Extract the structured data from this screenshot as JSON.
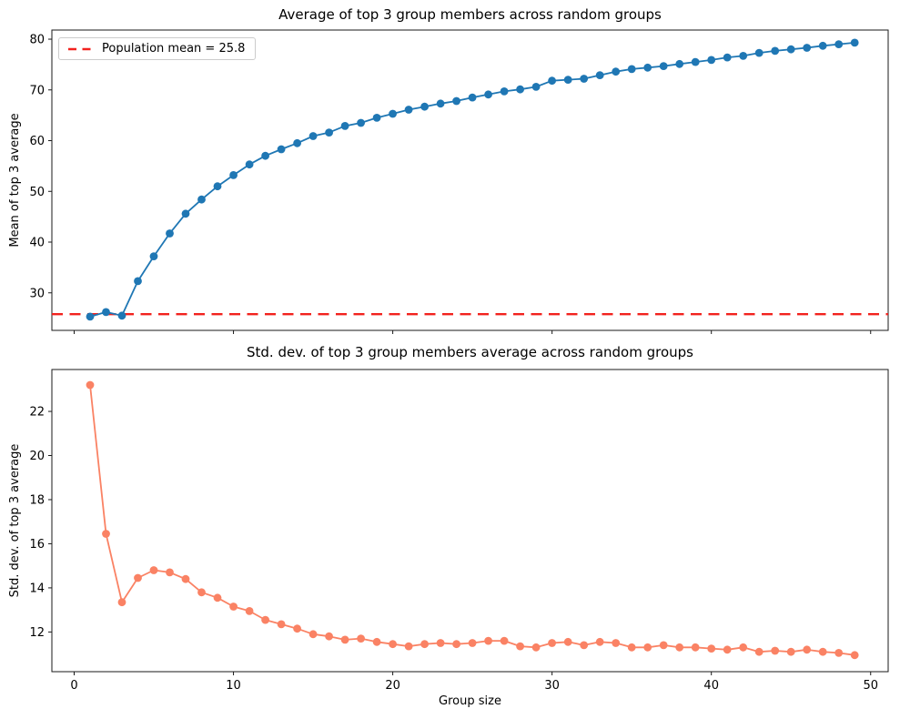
{
  "figure": {
    "background": "#ffffff",
    "text_color": "#000000",
    "spine_color": "#1a1a1a"
  },
  "chart_data": [
    {
      "type": "line",
      "title": "Average of top 3 group members across random groups",
      "xlabel": "",
      "ylabel": "Mean of top 3 average",
      "series_color": "#1f77b4",
      "marker": "circle",
      "x": [
        1,
        2,
        3,
        4,
        5,
        6,
        7,
        8,
        9,
        10,
        11,
        12,
        13,
        14,
        15,
        16,
        17,
        18,
        19,
        20,
        21,
        22,
        23,
        24,
        25,
        26,
        27,
        28,
        29,
        30,
        31,
        32,
        33,
        34,
        35,
        36,
        37,
        38,
        39,
        40,
        41,
        42,
        43,
        44,
        45,
        46,
        47,
        48,
        49
      ],
      "values": [
        25.3,
        26.2,
        25.5,
        32.3,
        37.2,
        41.7,
        45.6,
        48.4,
        51.0,
        53.2,
        55.3,
        57.0,
        58.3,
        59.5,
        60.9,
        61.6,
        62.9,
        63.5,
        64.5,
        65.3,
        66.1,
        66.7,
        67.3,
        67.8,
        68.5,
        69.1,
        69.7,
        70.1,
        70.6,
        71.8,
        72.0,
        72.2,
        72.9,
        73.6,
        74.1,
        74.4,
        74.7,
        75.1,
        75.5,
        75.9,
        76.4,
        76.7,
        77.3,
        77.7,
        78.0,
        78.3,
        78.7,
        79.0,
        79.3
      ],
      "hline": {
        "value": 25.8,
        "color": "#f2221e",
        "style": "dashed",
        "label": "Population mean = 25.8"
      },
      "legend_position": "upper-left",
      "xlim": [
        -1.4,
        51.1
      ],
      "ylim": [
        22.6,
        81.8
      ],
      "xticks": [
        0,
        10,
        20,
        30,
        40,
        50
      ],
      "x_tick_labels_visible": false,
      "yticks": [
        30,
        40,
        50,
        60,
        70,
        80
      ],
      "grid": false
    },
    {
      "type": "line",
      "title": "Std. dev. of top 3 group members average across random groups",
      "xlabel": "Group size",
      "ylabel": "Std. dev. of top 3 average",
      "series_color": "#fa8264",
      "marker": "circle",
      "x": [
        1,
        2,
        3,
        4,
        5,
        6,
        7,
        8,
        9,
        10,
        11,
        12,
        13,
        14,
        15,
        16,
        17,
        18,
        19,
        20,
        21,
        22,
        23,
        24,
        25,
        26,
        27,
        28,
        29,
        30,
        31,
        32,
        33,
        34,
        35,
        36,
        37,
        38,
        39,
        40,
        41,
        42,
        43,
        44,
        45,
        46,
        47,
        48,
        49
      ],
      "values": [
        23.2,
        16.45,
        13.35,
        14.45,
        14.8,
        14.7,
        14.4,
        13.8,
        13.55,
        13.15,
        12.95,
        12.55,
        12.35,
        12.15,
        11.9,
        11.8,
        11.65,
        11.7,
        11.55,
        11.45,
        11.35,
        11.45,
        11.5,
        11.45,
        11.5,
        11.6,
        11.6,
        11.35,
        11.3,
        11.5,
        11.55,
        11.4,
        11.55,
        11.5,
        11.3,
        11.3,
        11.4,
        11.3,
        11.3,
        11.25,
        11.2,
        11.3,
        11.1,
        11.15,
        11.1,
        11.2,
        11.1,
        11.05,
        10.95
      ],
      "legend_position": "none",
      "xlim": [
        -1.4,
        51.1
      ],
      "ylim": [
        10.2,
        23.9
      ],
      "xticks": [
        0,
        10,
        20,
        30,
        40,
        50
      ],
      "x_tick_labels_visible": true,
      "yticks": [
        12,
        14,
        16,
        18,
        20,
        22
      ],
      "grid": false
    }
  ]
}
